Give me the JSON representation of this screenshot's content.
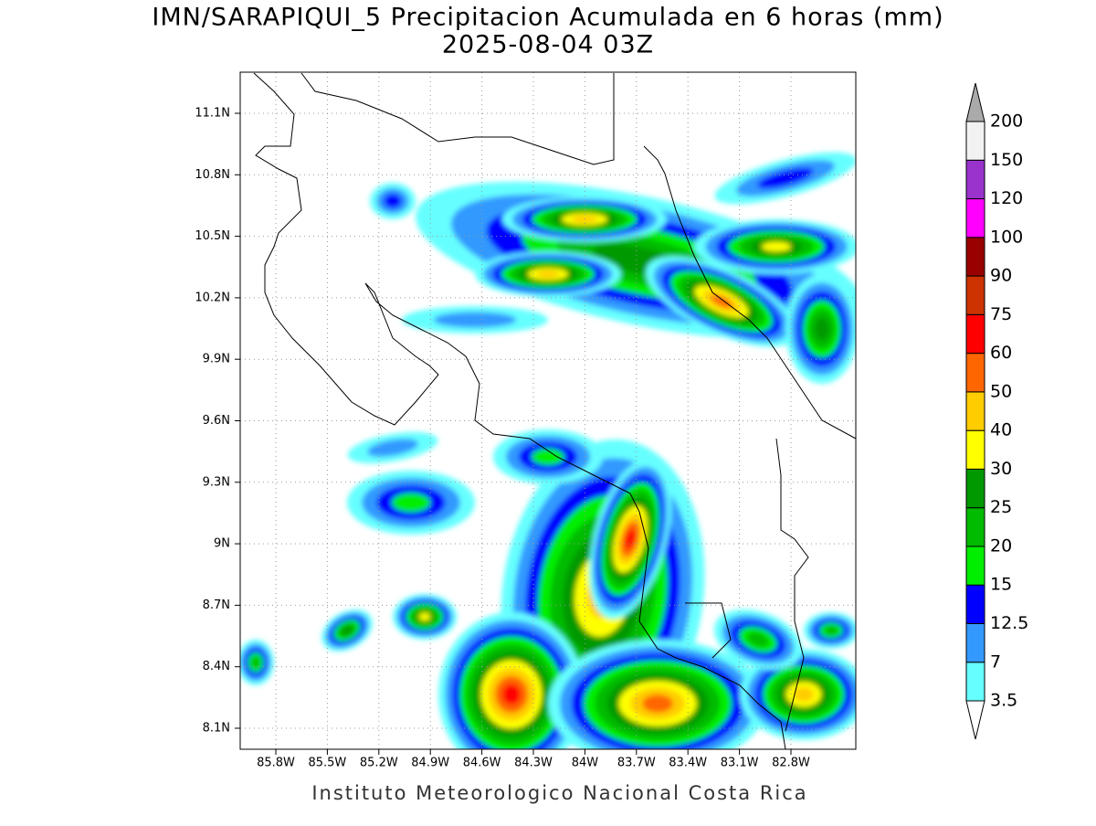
{
  "header": {
    "title": "IMN/SARAPIQUI_5 Precipitacion Acumulada en 6 horas (mm)",
    "subtitle": "2025-08-04 03Z"
  },
  "map": {
    "lat_labels": [
      "11.1N",
      "10.8N",
      "10.5N",
      "10.2N",
      "9.9N",
      "9.6N",
      "9.3N",
      "9N",
      "8.7N",
      "8.4N",
      "8.1N"
    ],
    "lon_labels": [
      "85.8W",
      "85.5W",
      "85.2W",
      "84.9W",
      "84.6W",
      "84.3W",
      "84W",
      "83.7W",
      "83.4W",
      "83.1W",
      "82.8W"
    ],
    "grid": true
  },
  "colorbar": {
    "levels": [
      3.5,
      7,
      12.5,
      15,
      20,
      25,
      30,
      40,
      50,
      60,
      75,
      90,
      100,
      120,
      150,
      200
    ],
    "colors": [
      "#66ffff",
      "#3399ff",
      "#0000ff",
      "#00ee00",
      "#00bb00",
      "#009900",
      "#ffff00",
      "#ffcc00",
      "#ff6600",
      "#ff0000",
      "#cc3300",
      "#990000",
      "#ff00ff",
      "#9933cc",
      "#f2f2f2"
    ],
    "under_color": "#ffffff",
    "over_color": "#aaaaaa"
  },
  "footer": "Instituto Meteorologico Nacional Costa Rica"
}
